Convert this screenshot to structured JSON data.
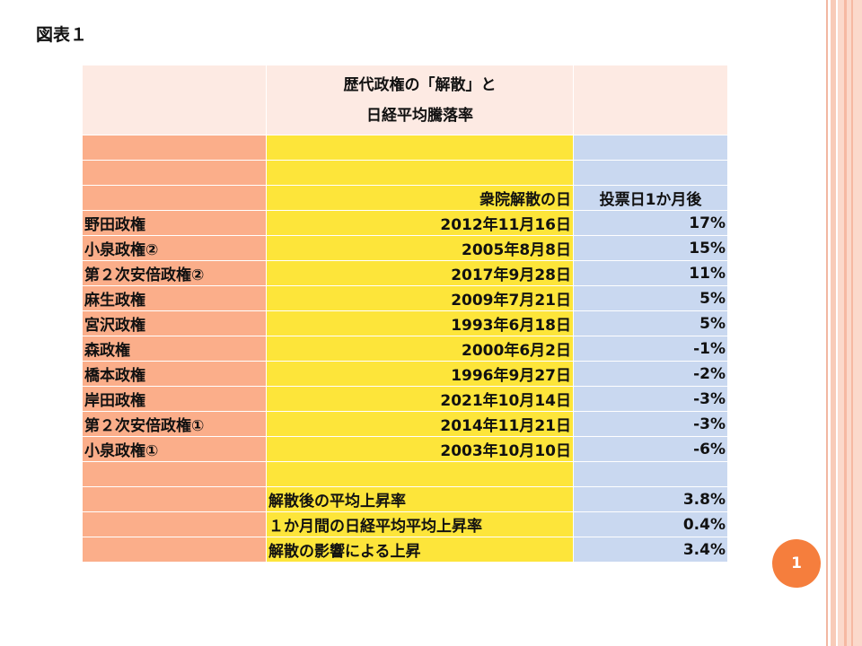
{
  "label": "図表１",
  "title_lines": [
    "歴代政権の「解散」と",
    "日経平均騰落率"
  ],
  "headers": {
    "dissolution_date": "衆院解散の日",
    "one_month_after": "投票日1か月後"
  },
  "rows": [
    {
      "government": "野田政権",
      "date": "2012年11月16日",
      "change": "17%"
    },
    {
      "government": "小泉政権②",
      "date": "2005年8月8日",
      "change": "15%"
    },
    {
      "government": "第２次安倍政権②",
      "date": "2017年9月28日",
      "change": "11%"
    },
    {
      "government": "麻生政権",
      "date": "2009年7月21日",
      "change": "5%"
    },
    {
      "government": "宮沢政権",
      "date": "1993年6月18日",
      "change": "5%"
    },
    {
      "government": "森政権",
      "date": "2000年6月2日",
      "change": "-1%"
    },
    {
      "government": "橋本政権",
      "date": "1996年9月27日",
      "change": "-2%"
    },
    {
      "government": "岸田政権",
      "date": "2021年10月14日",
      "change": "-3%"
    },
    {
      "government": "第２次安倍政権①",
      "date": "2014年11月21日",
      "change": "-3%"
    },
    {
      "government": "小泉政権①",
      "date": "2003年10月10日",
      "change": "-6%"
    }
  ],
  "summary": [
    {
      "label": "解散後の平均上昇率",
      "value": "3.8%"
    },
    {
      "label": "１か月間の日経平均平均上昇率",
      "value": "0.4%"
    },
    {
      "label": "解散の影響による上昇",
      "value": "3.4%"
    }
  ],
  "page_number": "1",
  "colors": {
    "col1": "#fbae8a",
    "col2": "#fde53a",
    "col3": "#c9d8f0",
    "title_bg": "#fdeae3",
    "badge": "#f57e3d"
  }
}
